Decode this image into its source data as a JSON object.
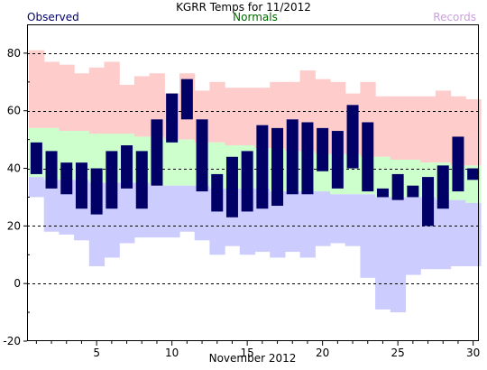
{
  "chart_data": {
    "type": "bar",
    "title": "KGRR Temps for 11/2012",
    "xlabel": "November 2012",
    "ylabel": "",
    "ylim": [
      -20,
      90
    ],
    "y_ticks": [
      -20,
      0,
      20,
      40,
      60,
      80
    ],
    "x_ticks": [
      5,
      10,
      15,
      20,
      25,
      30
    ],
    "grid": "dashed-horizontal",
    "legend": [
      {
        "name": "Observed",
        "color": "#000066",
        "placement": "top-left"
      },
      {
        "name": "Normals",
        "color": "#006600",
        "placement": "top-center"
      },
      {
        "name": "Records",
        "color": "#c9a0dc",
        "placement": "top-right"
      }
    ],
    "days": [
      1,
      2,
      3,
      4,
      5,
      6,
      7,
      8,
      9,
      10,
      11,
      12,
      13,
      14,
      15,
      16,
      17,
      18,
      19,
      20,
      21,
      22,
      23,
      24,
      25,
      26,
      27,
      28,
      29,
      30
    ],
    "observed_high": [
      49,
      46,
      42,
      42,
      40,
      46,
      48,
      46,
      57,
      66,
      71,
      57,
      38,
      44,
      46,
      55,
      54,
      57,
      56,
      54,
      53,
      62,
      56,
      33,
      38,
      34,
      37,
      41,
      51,
      40
    ],
    "observed_low": [
      38,
      33,
      31,
      26,
      24,
      26,
      33,
      26,
      34,
      49,
      57,
      32,
      25,
      23,
      25,
      26,
      27,
      31,
      31,
      39,
      33,
      40,
      32,
      30,
      29,
      30,
      20,
      26,
      32,
      36
    ],
    "normal_high": [
      54,
      54,
      53,
      53,
      52,
      52,
      52,
      51,
      51,
      50,
      50,
      49,
      49,
      48,
      48,
      47,
      47,
      46,
      46,
      45,
      45,
      45,
      44,
      44,
      43,
      43,
      42,
      42,
      41,
      41
    ],
    "normal_low": [
      37,
      36,
      36,
      36,
      35,
      35,
      35,
      35,
      34,
      34,
      34,
      34,
      33,
      33,
      33,
      33,
      32,
      32,
      32,
      32,
      31,
      31,
      31,
      30,
      30,
      30,
      30,
      29,
      29,
      28
    ],
    "record_high": [
      81,
      77,
      76,
      73,
      75,
      77,
      69,
      72,
      73,
      66,
      73,
      67,
      70,
      68,
      68,
      68,
      70,
      70,
      74,
      71,
      70,
      66,
      70,
      65,
      65,
      65,
      65,
      67,
      65,
      64
    ],
    "record_low": [
      30,
      18,
      17,
      15,
      6,
      9,
      14,
      16,
      16,
      16,
      18,
      15,
      10,
      13,
      10,
      11,
      9,
      11,
      9,
      13,
      14,
      13,
      2,
      -9,
      -10,
      3,
      5,
      5,
      6,
      6
    ],
    "colors": {
      "observed": "#000066",
      "normal": "#ccffcc",
      "record_high": "#ffcccc",
      "record_low": "#ccccff",
      "grid": "#000000",
      "axis": "#000000"
    }
  }
}
